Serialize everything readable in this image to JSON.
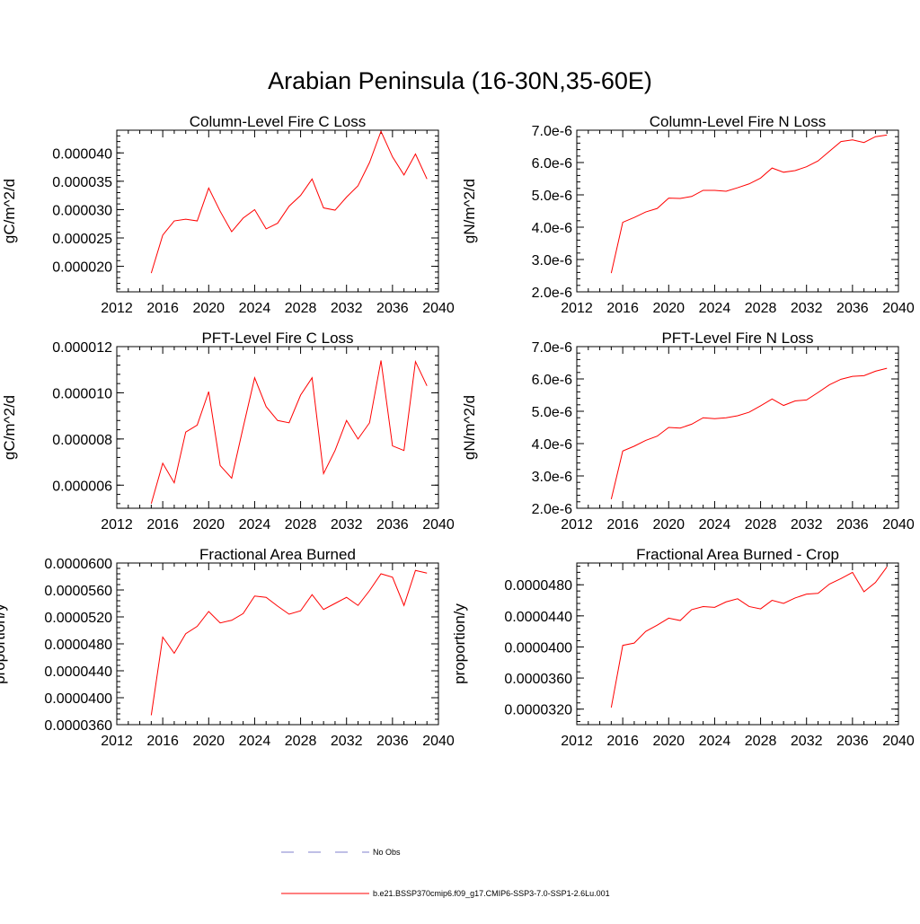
{
  "figure": {
    "title": "Arabian Peninsula (16-30N,35-60E)"
  },
  "legend": {
    "entries": [
      {
        "label": "No Obs",
        "color": "#7f7fcc",
        "dash": "dashed"
      },
      {
        "label": "b.e21.BSSP370cmip6.f09_g17.CMIP6-SSP3-7.0-SSP1-2.6Lu.001",
        "color": "#ff0000",
        "dash": "solid"
      }
    ]
  },
  "colors": {
    "series": "#ff0000",
    "axes": "#000000"
  },
  "chart_data": [
    {
      "type": "line",
      "title": "Column-Level Fire C Loss",
      "ylabel": "gC/m^2/d",
      "xlim": [
        2012,
        2040
      ],
      "ylim": [
        1.55e-05,
        4.4e-05
      ],
      "xticks": [
        "2012",
        "2016",
        "2020",
        "2024",
        "2028",
        "2032",
        "2036",
        "2040"
      ],
      "yticks": [
        {
          "value": 2e-05,
          "label": "0.000020"
        },
        {
          "value": 2.5e-05,
          "label": "0.000025"
        },
        {
          "value": 3e-05,
          "label": "0.000030"
        },
        {
          "value": 3.5e-05,
          "label": "0.000035"
        },
        {
          "value": 4e-05,
          "label": "0.000040"
        }
      ],
      "x": [
        2015,
        2016,
        2017,
        2018,
        2019,
        2020,
        2021,
        2022,
        2023,
        2024,
        2025,
        2026,
        2027,
        2028,
        2029,
        2030,
        2031,
        2032,
        2033,
        2034,
        2035,
        2036,
        2037,
        2038,
        2039
      ],
      "series": [
        {
          "values": [
            1.88e-05,
            2.55e-05,
            2.8e-05,
            2.83e-05,
            2.8e-05,
            3.38e-05,
            2.97e-05,
            2.61e-05,
            2.85e-05,
            3e-05,
            2.66e-05,
            2.76e-05,
            3.06e-05,
            3.25e-05,
            3.54e-05,
            3.03e-05,
            2.99e-05,
            3.22e-05,
            3.42e-05,
            3.83e-05,
            4.38e-05,
            3.93e-05,
            3.61e-05,
            3.98e-05,
            3.54e-05
          ]
        }
      ]
    },
    {
      "type": "line",
      "title": "Column-Level Fire N Loss",
      "ylabel": "gN/m^2/d",
      "xlim": [
        2012,
        2040
      ],
      "ylim": [
        2e-06,
        7e-06
      ],
      "xticks": [
        "2012",
        "2016",
        "2020",
        "2024",
        "2028",
        "2032",
        "2036",
        "2040"
      ],
      "yticks": [
        {
          "value": 2e-06,
          "label": "2.0e-6"
        },
        {
          "value": 3e-06,
          "label": "3.0e-6"
        },
        {
          "value": 4e-06,
          "label": "4.0e-6"
        },
        {
          "value": 5e-06,
          "label": "5.0e-6"
        },
        {
          "value": 6e-06,
          "label": "6.0e-6"
        },
        {
          "value": 7e-06,
          "label": "7.0e-6"
        }
      ],
      "x": [
        2015,
        2016,
        2017,
        2018,
        2019,
        2020,
        2021,
        2022,
        2023,
        2024,
        2025,
        2026,
        2027,
        2028,
        2029,
        2030,
        2031,
        2032,
        2033,
        2034,
        2035,
        2036,
        2037,
        2038,
        2039
      ],
      "series": [
        {
          "values": [
            2.58e-06,
            4.15e-06,
            4.3e-06,
            4.47e-06,
            4.58e-06,
            4.9e-06,
            4.89e-06,
            4.95e-06,
            5.14e-06,
            5.14e-06,
            5.11e-06,
            5.22e-06,
            5.34e-06,
            5.52e-06,
            5.83e-06,
            5.7e-06,
            5.75e-06,
            5.87e-06,
            6.05e-06,
            6.35e-06,
            6.65e-06,
            6.7e-06,
            6.62e-06,
            6.8e-06,
            6.85e-06
          ]
        }
      ]
    },
    {
      "type": "line",
      "title": "PFT-Level Fire C Loss",
      "ylabel": "gC/m^2/d",
      "xlim": [
        2012,
        2040
      ],
      "ylim": [
        5e-06,
        1.2e-05
      ],
      "xticks": [
        "2012",
        "2016",
        "2020",
        "2024",
        "2028",
        "2032",
        "2036",
        "2040"
      ],
      "yticks": [
        {
          "value": 6e-06,
          "label": "0.000006"
        },
        {
          "value": 8e-06,
          "label": "0.000008"
        },
        {
          "value": 1e-05,
          "label": "0.000010"
        },
        {
          "value": 1.2e-05,
          "label": "0.000012"
        }
      ],
      "x": [
        2015,
        2016,
        2017,
        2018,
        2019,
        2020,
        2021,
        2022,
        2023,
        2024,
        2025,
        2026,
        2027,
        2028,
        2029,
        2030,
        2031,
        2032,
        2033,
        2034,
        2035,
        2036,
        2037,
        2038,
        2039
      ],
      "series": [
        {
          "values": [
            5.2e-06,
            6.95e-06,
            6.1e-06,
            8.3e-06,
            8.6e-06,
            1.005e-05,
            6.85e-06,
            6.3e-06,
            8.5e-06,
            1.065e-05,
            9.4e-06,
            8.8e-06,
            8.7e-06,
            9.9e-06,
            1.065e-05,
            6.5e-06,
            7.5e-06,
            8.8e-06,
            8e-06,
            8.7e-06,
            1.14e-05,
            7.7e-06,
            7.5e-06,
            1.135e-05,
            1.03e-05
          ]
        }
      ]
    },
    {
      "type": "line",
      "title": "PFT-Level Fire N Loss",
      "ylabel": "gN/m^2/d",
      "xlim": [
        2012,
        2040
      ],
      "ylim": [
        2e-06,
        7e-06
      ],
      "xticks": [
        "2012",
        "2016",
        "2020",
        "2024",
        "2028",
        "2032",
        "2036",
        "2040"
      ],
      "yticks": [
        {
          "value": 2e-06,
          "label": "2.0e-6"
        },
        {
          "value": 3e-06,
          "label": "3.0e-6"
        },
        {
          "value": 4e-06,
          "label": "4.0e-6"
        },
        {
          "value": 5e-06,
          "label": "5.0e-6"
        },
        {
          "value": 6e-06,
          "label": "6.0e-6"
        },
        {
          "value": 7e-06,
          "label": "7.0e-6"
        }
      ],
      "x": [
        2015,
        2016,
        2017,
        2018,
        2019,
        2020,
        2021,
        2022,
        2023,
        2024,
        2025,
        2026,
        2027,
        2028,
        2029,
        2030,
        2031,
        2032,
        2033,
        2034,
        2035,
        2036,
        2037,
        2038,
        2039
      ],
      "series": [
        {
          "values": [
            2.28e-06,
            3.77e-06,
            3.92e-06,
            4.1e-06,
            4.23e-06,
            4.5e-06,
            4.48e-06,
            4.6e-06,
            4.8e-06,
            4.77e-06,
            4.8e-06,
            4.86e-06,
            4.97e-06,
            5.17e-06,
            5.38e-06,
            5.18e-06,
            5.32e-06,
            5.35e-06,
            5.58e-06,
            5.82e-06,
            5.99e-06,
            6.08e-06,
            6.1e-06,
            6.24e-06,
            6.33e-06
          ]
        }
      ]
    },
    {
      "type": "line",
      "title": "Fractional Area Burned",
      "ylabel": "proportion/y",
      "xlim": [
        2012,
        2040
      ],
      "ylim": [
        3.6e-05,
        6e-05
      ],
      "xticks": [
        "2012",
        "2016",
        "2020",
        "2024",
        "2028",
        "2032",
        "2036",
        "2040"
      ],
      "yticks": [
        {
          "value": 3.6e-05,
          "label": "0.0000360"
        },
        {
          "value": 4e-05,
          "label": "0.0000400"
        },
        {
          "value": 4.4e-05,
          "label": "0.0000440"
        },
        {
          "value": 4.8e-05,
          "label": "0.0000480"
        },
        {
          "value": 5.2e-05,
          "label": "0.0000520"
        },
        {
          "value": 5.6e-05,
          "label": "0.0000560"
        },
        {
          "value": 6e-05,
          "label": "0.0000600"
        }
      ],
      "x": [
        2015,
        2016,
        2017,
        2018,
        2019,
        2020,
        2021,
        2022,
        2023,
        2024,
        2025,
        2026,
        2027,
        2028,
        2029,
        2030,
        2031,
        2032,
        2033,
        2034,
        2035,
        2036,
        2037,
        2038,
        2039
      ],
      "series": [
        {
          "values": [
            3.74e-05,
            4.9e-05,
            4.66e-05,
            4.95e-05,
            5.06e-05,
            5.28e-05,
            5.11e-05,
            5.15e-05,
            5.25e-05,
            5.51e-05,
            5.49e-05,
            5.36e-05,
            5.24e-05,
            5.29e-05,
            5.53e-05,
            5.31e-05,
            5.4e-05,
            5.49e-05,
            5.37e-05,
            5.59e-05,
            5.84e-05,
            5.79e-05,
            5.37e-05,
            5.89e-05,
            5.85e-05
          ]
        }
      ]
    },
    {
      "type": "line",
      "title": "Fractional Area Burned - Crop",
      "ylabel": "proportion/y",
      "xlim": [
        2012,
        2040
      ],
      "ylim": [
        3e-05,
        5.08e-05
      ],
      "xticks": [
        "2012",
        "2016",
        "2020",
        "2024",
        "2028",
        "2032",
        "2036",
        "2040"
      ],
      "yticks": [
        {
          "value": 3.2e-05,
          "label": "0.0000320"
        },
        {
          "value": 3.6e-05,
          "label": "0.0000360"
        },
        {
          "value": 4e-05,
          "label": "0.0000400"
        },
        {
          "value": 4.4e-05,
          "label": "0.0000440"
        },
        {
          "value": 4.8e-05,
          "label": "0.0000480"
        }
      ],
      "x": [
        2015,
        2016,
        2017,
        2018,
        2019,
        2020,
        2021,
        2022,
        2023,
        2024,
        2025,
        2026,
        2027,
        2028,
        2029,
        2030,
        2031,
        2032,
        2033,
        2034,
        2035,
        2036,
        2037,
        2038,
        2039
      ],
      "series": [
        {
          "values": [
            3.22e-05,
            4.02e-05,
            4.05e-05,
            4.2e-05,
            4.28e-05,
            4.37e-05,
            4.34e-05,
            4.48e-05,
            4.52e-05,
            4.51e-05,
            4.58e-05,
            4.62e-05,
            4.52e-05,
            4.49e-05,
            4.6e-05,
            4.56e-05,
            4.63e-05,
            4.68e-05,
            4.69e-05,
            4.81e-05,
            4.88e-05,
            4.96e-05,
            4.71e-05,
            4.83e-05,
            5.03e-05
          ]
        }
      ]
    }
  ]
}
